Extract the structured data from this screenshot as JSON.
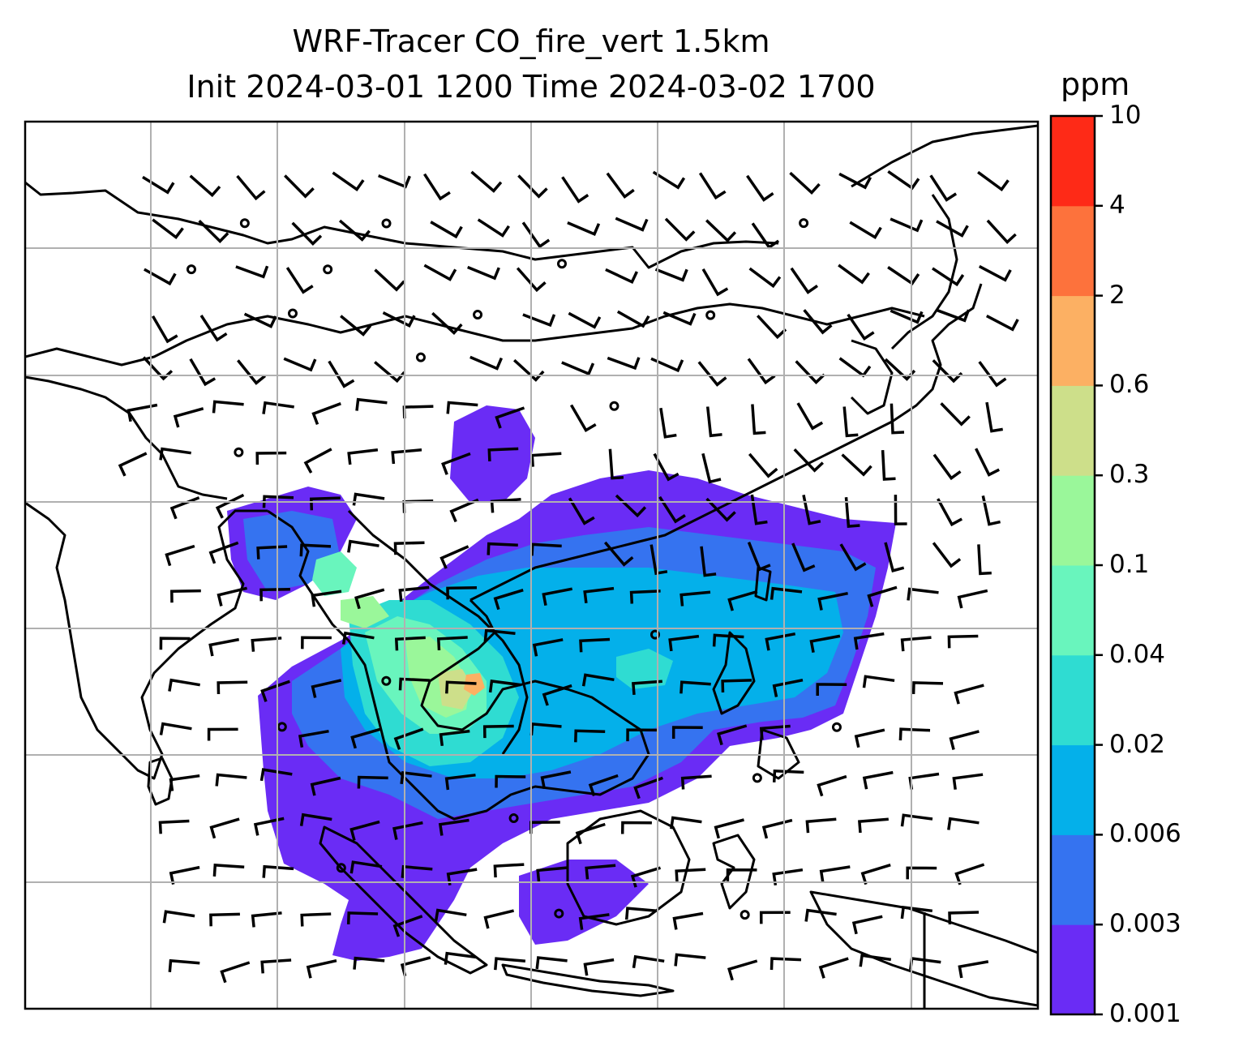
{
  "title": {
    "line1": "WRF-Tracer CO_fire_vert 1.5km",
    "line2": "Init 2024-03-01 1200 Time 2024-03-02 1700"
  },
  "colorbar": {
    "unit": "ppm",
    "ticks": [
      "10",
      "4",
      "2",
      "0.6",
      "0.3",
      "0.1",
      "0.04",
      "0.02",
      "0.006",
      "0.003",
      "0.001"
    ],
    "colors_bottom_to_top": [
      "#6a2cf5",
      "#3573f0",
      "#04b0ea",
      "#2fdcd2",
      "#69f5bd",
      "#9af79a",
      "#cddf8a",
      "#fcb063",
      "#fd723c",
      "#fe2a17"
    ]
  },
  "map": {
    "gridlines": true,
    "gridline_color": "#b0b0b0",
    "coastline_color": "#000000",
    "wind_symbol": "wind-barbs"
  }
}
